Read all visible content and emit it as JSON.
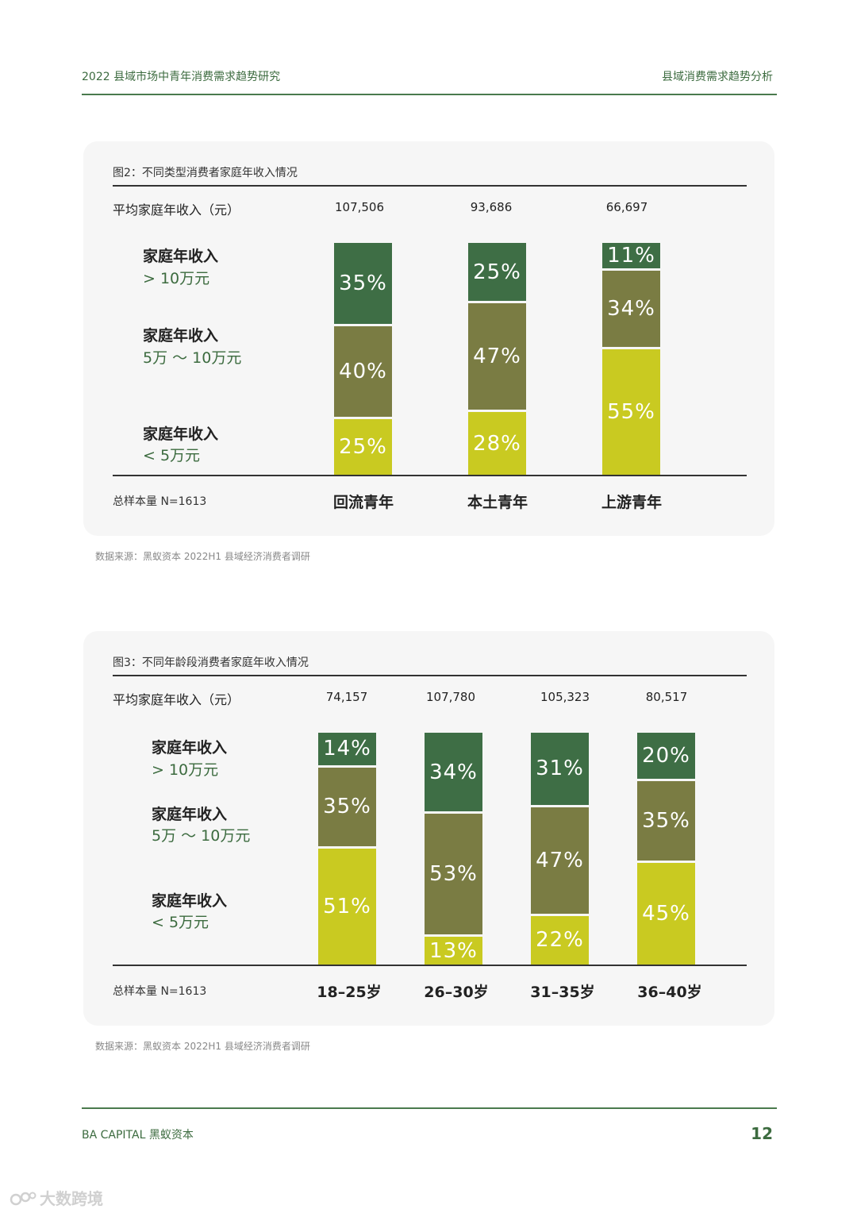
{
  "header": {
    "report_title": "2022 县域市场中青年消费需求趋势研究",
    "section_title": "县域消费需求趋势分析"
  },
  "colors": {
    "high": "#3e6e45",
    "mid": "#7a7c43",
    "low": "#c9ca21",
    "accent": "#3c6b3f"
  },
  "chart_data": [
    {
      "type": "bar",
      "stacked": true,
      "title": "图2：不同类型消费者家庭年收入情况",
      "avg_income_label": "平均家庭年收入（元）",
      "categories": [
        "回流青年",
        "本土青年",
        "上游青年"
      ],
      "avg_income": [
        "107,506",
        "93,686",
        "66,697"
      ],
      "series": [
        {
          "name": "家庭年收入",
          "sub": "> 10万元",
          "values": [
            35,
            25,
            11
          ]
        },
        {
          "name": "家庭年收入",
          "sub": "5万 ～ 10万元",
          "values": [
            40,
            47,
            34
          ]
        },
        {
          "name": "家庭年收入",
          "sub": "< 5万元",
          "values": [
            25,
            28,
            55
          ]
        }
      ],
      "sample_size": "总样本量 N=1613"
    },
    {
      "type": "bar",
      "stacked": true,
      "title": "图3：不同年龄段消费者家庭年收入情况",
      "avg_income_label": "平均家庭年收入（元）",
      "categories": [
        "18–25岁",
        "26–30岁",
        "31–35岁",
        "36–40岁"
      ],
      "avg_income": [
        "74,157",
        "107,780",
        "105,323",
        "80,517"
      ],
      "series": [
        {
          "name": "家庭年收入",
          "sub": "> 10万元",
          "values": [
            14,
            34,
            31,
            20
          ]
        },
        {
          "name": "家庭年收入",
          "sub": "5万 ～ 10万元",
          "values": [
            35,
            53,
            47,
            35
          ]
        },
        {
          "name": "家庭年收入",
          "sub": "< 5万元",
          "values": [
            51,
            13,
            22,
            45
          ]
        }
      ],
      "sample_size": "总样本量 N=1613"
    }
  ],
  "source": "数据来源：黑蚁资本 2022H1 县域经济消费者调研",
  "footer": {
    "brand": "BA CAPITAL 黑蚁资本",
    "page_number": "12"
  },
  "watermark": "大数跨境"
}
